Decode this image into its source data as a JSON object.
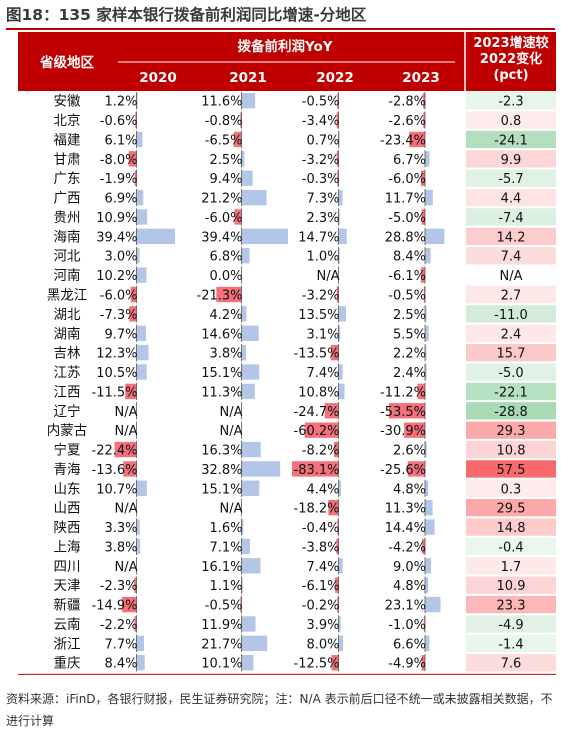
{
  "title": "图18：135 家样本银行拨备前利润同比增速-分地区",
  "footnote": "资料来源：iFinD，各银行财报，民生证券研究院；注：N/A 表示前后口径不统一或未披露相关数据，不进行计算",
  "colors": {
    "header_bg": "#c00000",
    "title_rule": "#c00000",
    "bar_positive": "#b4c6e7",
    "bar_negative": "#f4717b",
    "change_positive_strong": "#f8696b",
    "change_negative_strong": "#63be7b",
    "change_neutral": "#ffffff"
  },
  "chart_data": {
    "type": "table",
    "header": {
      "region": "省级地区",
      "group": "拨备前利润YoY",
      "years": [
        "2020",
        "2021",
        "2022",
        "2023"
      ],
      "change_lines": [
        "2023增速较",
        "2022变化",
        "(pct)"
      ]
    },
    "value_unit": "%",
    "columns": [
      "2020",
      "2021",
      "2022",
      "2023",
      "2023增速较2022变化(pct)"
    ],
    "rows": [
      {
        "region": "安徽",
        "values": [
          1.2,
          11.6,
          -0.5,
          -2.8
        ],
        "change": -2.3
      },
      {
        "region": "北京",
        "values": [
          -0.6,
          -0.8,
          -3.4,
          -2.6
        ],
        "change": 0.8
      },
      {
        "region": "福建",
        "values": [
          6.1,
          -6.5,
          0.7,
          -23.4
        ],
        "change": -24.1
      },
      {
        "region": "甘肃",
        "values": [
          -8.0,
          2.5,
          -3.2,
          6.7
        ],
        "change": 9.9
      },
      {
        "region": "广东",
        "values": [
          -1.9,
          9.4,
          -0.3,
          -6.0
        ],
        "change": -5.7
      },
      {
        "region": "广西",
        "values": [
          6.9,
          21.2,
          7.3,
          11.7
        ],
        "change": 4.4
      },
      {
        "region": "贵州",
        "values": [
          10.9,
          -6.0,
          2.3,
          -5.0
        ],
        "change": -7.4
      },
      {
        "region": "海南",
        "values": [
          39.4,
          39.4,
          14.7,
          28.8
        ],
        "change": 14.2
      },
      {
        "region": "河北",
        "values": [
          3.0,
          6.8,
          1.0,
          8.4
        ],
        "change": 7.4
      },
      {
        "region": "河南",
        "values": [
          10.2,
          0.0,
          null,
          -6.1
        ],
        "change": null
      },
      {
        "region": "黑龙江",
        "values": [
          -6.0,
          -21.3,
          -3.2,
          -0.5
        ],
        "change": 2.7
      },
      {
        "region": "湖北",
        "values": [
          -7.3,
          4.2,
          13.5,
          2.5
        ],
        "change": -11.0
      },
      {
        "region": "湖南",
        "values": [
          9.7,
          14.6,
          3.1,
          5.5
        ],
        "change": 2.4
      },
      {
        "region": "吉林",
        "values": [
          12.3,
          3.8,
          -13.5,
          2.2
        ],
        "change": 15.7
      },
      {
        "region": "江苏",
        "values": [
          10.5,
          15.1,
          7.4,
          2.4
        ],
        "change": -5.0
      },
      {
        "region": "江西",
        "values": [
          -11.5,
          11.3,
          10.8,
          -11.2
        ],
        "change": -22.1
      },
      {
        "region": "辽宁",
        "values": [
          null,
          null,
          -24.7,
          -53.5
        ],
        "change": -28.8
      },
      {
        "region": "内蒙古",
        "values": [
          null,
          null,
          -60.2,
          -30.9
        ],
        "change": 29.3
      },
      {
        "region": "宁夏",
        "values": [
          -22.4,
          16.3,
          -8.2,
          2.6
        ],
        "change": 10.8
      },
      {
        "region": "青海",
        "values": [
          -13.6,
          32.8,
          -83.1,
          -25.6
        ],
        "change": 57.5
      },
      {
        "region": "山东",
        "values": [
          10.7,
          15.1,
          4.4,
          4.8
        ],
        "change": 0.3
      },
      {
        "region": "山西",
        "values": [
          null,
          null,
          -18.2,
          11.3
        ],
        "change": 29.5
      },
      {
        "region": "陕西",
        "values": [
          3.3,
          1.6,
          -0.4,
          14.4
        ],
        "change": 14.8
      },
      {
        "region": "上海",
        "values": [
          3.8,
          7.1,
          -3.8,
          -4.2
        ],
        "change": -0.4
      },
      {
        "region": "四川",
        "values": [
          null,
          16.1,
          7.4,
          9.0
        ],
        "change": 1.7
      },
      {
        "region": "天津",
        "values": [
          -2.3,
          1.1,
          -6.1,
          4.8
        ],
        "change": 10.9
      },
      {
        "region": "新疆",
        "values": [
          -14.9,
          -0.5,
          -0.2,
          23.1
        ],
        "change": 23.3
      },
      {
        "region": "云南",
        "values": [
          -2.2,
          11.9,
          3.9,
          -1.0
        ],
        "change": -4.9
      },
      {
        "region": "浙江",
        "values": [
          7.7,
          21.7,
          8.0,
          6.6
        ],
        "change": -1.4
      },
      {
        "region": "重庆",
        "values": [
          8.4,
          10.1,
          -12.5,
          -4.9
        ],
        "change": 7.6
      }
    ]
  }
}
